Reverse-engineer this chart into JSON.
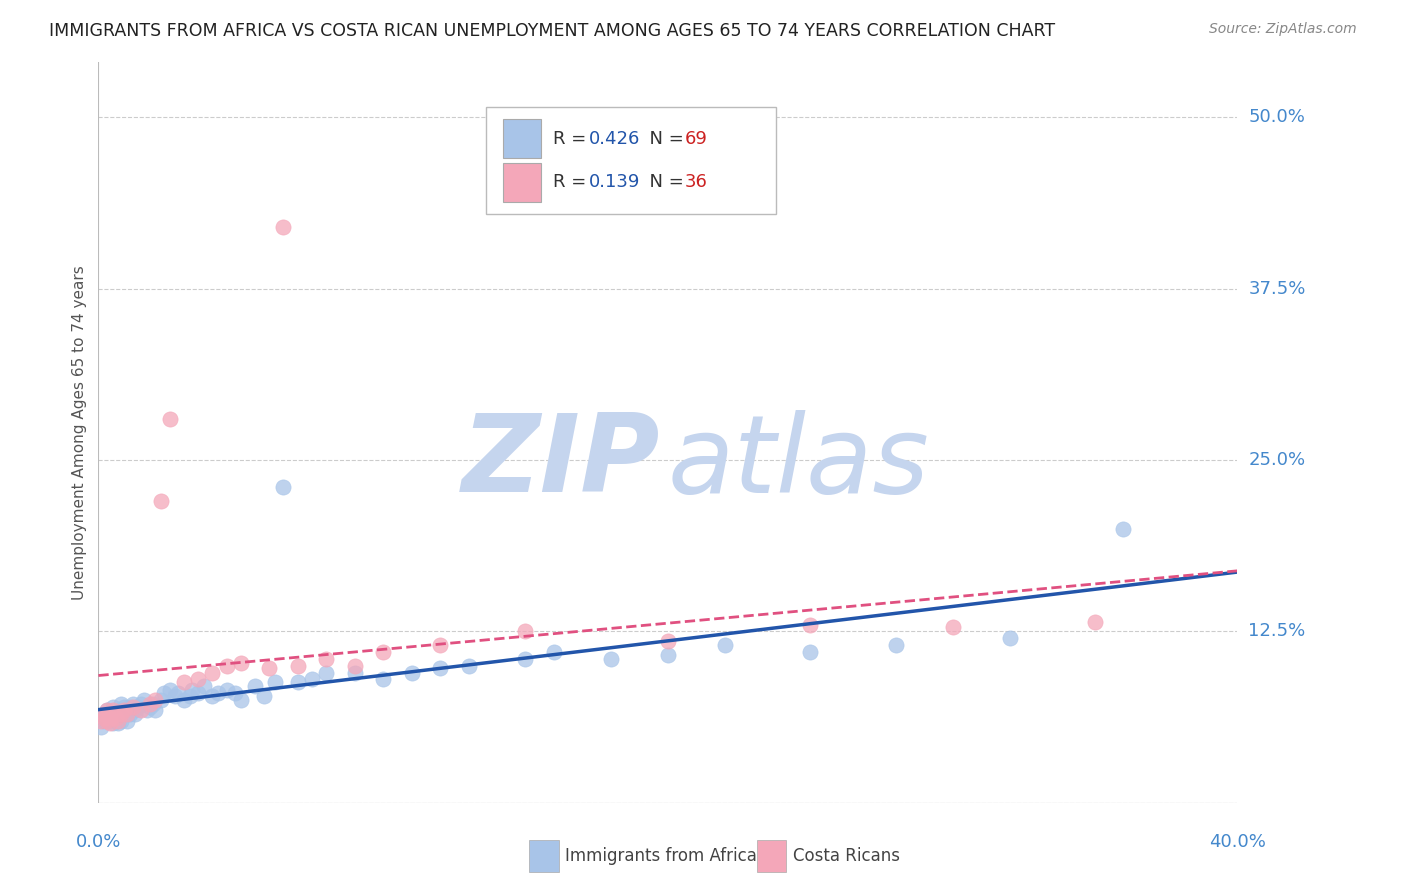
{
  "title": "IMMIGRANTS FROM AFRICA VS COSTA RICAN UNEMPLOYMENT AMONG AGES 65 TO 74 YEARS CORRELATION CHART",
  "source": "Source: ZipAtlas.com",
  "ylabel": "Unemployment Among Ages 65 to 74 years",
  "xlabel_blue": "Immigrants from Africa",
  "xlabel_pink": "Costa Ricans",
  "xlim": [
    0.0,
    0.4
  ],
  "ylim": [
    0.0,
    0.54
  ],
  "yticks": [
    0.0,
    0.125,
    0.25,
    0.375,
    0.5
  ],
  "ytick_labels": [
    "",
    "12.5%",
    "25.0%",
    "37.5%",
    "50.0%"
  ],
  "blue_R": 0.426,
  "blue_N": 69,
  "pink_R": 0.139,
  "pink_N": 36,
  "blue_color": "#a8c4e8",
  "pink_color": "#f4a7b9",
  "blue_line_color": "#2255aa",
  "pink_line_color": "#e05080",
  "watermark_zip_color": "#c5d5ee",
  "watermark_atlas_color": "#c5d5ee",
  "background_color": "#ffffff",
  "grid_color": "#cccccc",
  "title_color": "#222222",
  "axis_value_color": "#4488cc",
  "legend_R_color": "#2255aa",
  "legend_N_color": "#cc2222",
  "blue_scatter_x": [
    0.001,
    0.002,
    0.002,
    0.003,
    0.003,
    0.004,
    0.004,
    0.005,
    0.005,
    0.005,
    0.006,
    0.006,
    0.007,
    0.007,
    0.008,
    0.008,
    0.008,
    0.009,
    0.009,
    0.01,
    0.01,
    0.011,
    0.011,
    0.012,
    0.013,
    0.013,
    0.014,
    0.015,
    0.016,
    0.017,
    0.018,
    0.019,
    0.02,
    0.022,
    0.023,
    0.025,
    0.027,
    0.028,
    0.03,
    0.032,
    0.033,
    0.035,
    0.037,
    0.04,
    0.042,
    0.045,
    0.048,
    0.05,
    0.055,
    0.058,
    0.062,
    0.065,
    0.07,
    0.075,
    0.08,
    0.09,
    0.1,
    0.11,
    0.12,
    0.13,
    0.15,
    0.16,
    0.18,
    0.2,
    0.22,
    0.25,
    0.28,
    0.32,
    0.36
  ],
  "blue_scatter_y": [
    0.055,
    0.065,
    0.06,
    0.068,
    0.062,
    0.065,
    0.06,
    0.058,
    0.062,
    0.07,
    0.065,
    0.06,
    0.065,
    0.058,
    0.072,
    0.068,
    0.06,
    0.07,
    0.065,
    0.06,
    0.068,
    0.065,
    0.07,
    0.072,
    0.068,
    0.065,
    0.07,
    0.072,
    0.075,
    0.068,
    0.07,
    0.072,
    0.068,
    0.075,
    0.08,
    0.082,
    0.078,
    0.08,
    0.075,
    0.078,
    0.082,
    0.08,
    0.085,
    0.078,
    0.08,
    0.082,
    0.08,
    0.075,
    0.085,
    0.078,
    0.088,
    0.23,
    0.088,
    0.09,
    0.095,
    0.095,
    0.09,
    0.095,
    0.098,
    0.1,
    0.105,
    0.11,
    0.105,
    0.108,
    0.115,
    0.11,
    0.115,
    0.12,
    0.2
  ],
  "pink_scatter_x": [
    0.001,
    0.002,
    0.002,
    0.003,
    0.003,
    0.004,
    0.004,
    0.005,
    0.006,
    0.007,
    0.008,
    0.009,
    0.01,
    0.012,
    0.015,
    0.018,
    0.02,
    0.022,
    0.025,
    0.03,
    0.035,
    0.04,
    0.045,
    0.05,
    0.06,
    0.065,
    0.07,
    0.08,
    0.09,
    0.1,
    0.12,
    0.15,
    0.2,
    0.25,
    0.3,
    0.35
  ],
  "pink_scatter_y": [
    0.06,
    0.062,
    0.065,
    0.06,
    0.068,
    0.062,
    0.058,
    0.068,
    0.062,
    0.06,
    0.065,
    0.068,
    0.065,
    0.07,
    0.068,
    0.072,
    0.075,
    0.22,
    0.28,
    0.088,
    0.09,
    0.095,
    0.1,
    0.102,
    0.098,
    0.42,
    0.1,
    0.105,
    0.1,
    0.11,
    0.115,
    0.125,
    0.118,
    0.13,
    0.128,
    0.132
  ]
}
